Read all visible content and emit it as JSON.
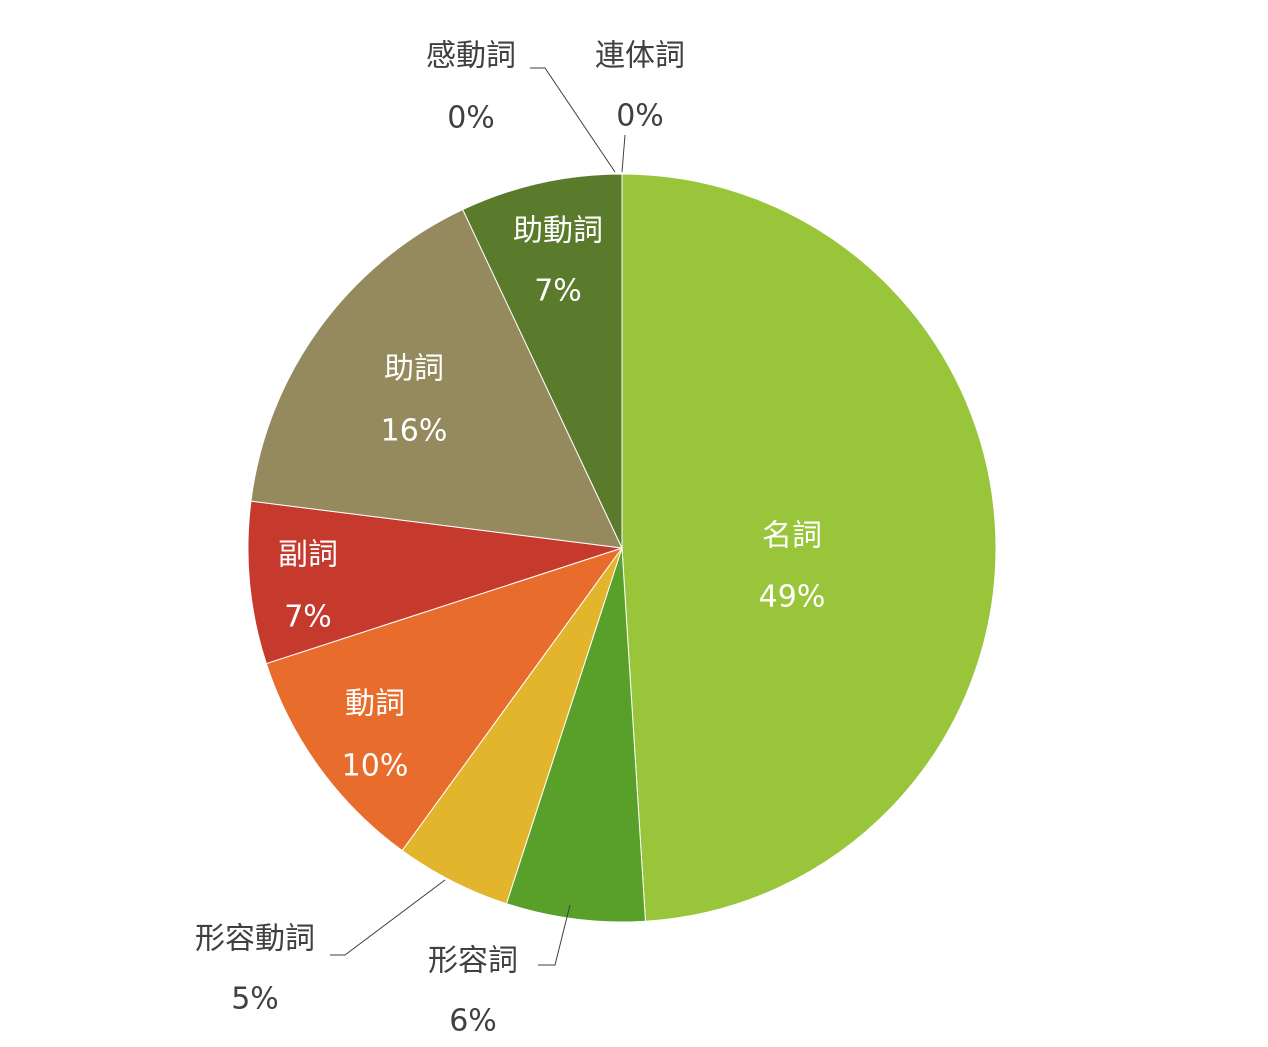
{
  "chart_data": {
    "type": "pie",
    "categories": [
      "名詞",
      "形容詞",
      "形容動詞",
      "動詞",
      "副詞",
      "助詞",
      "助動詞",
      "感動詞",
      "連体詞"
    ],
    "values": [
      49,
      6,
      5,
      10,
      7,
      16,
      7,
      0,
      0
    ],
    "value_labels": [
      "49%",
      "6%",
      "5%",
      "10%",
      "7%",
      "16%",
      "7%",
      "0%",
      "0%"
    ],
    "colors": [
      "#98c53a",
      "#58a02a",
      "#e2b52c",
      "#e86c2c",
      "#c63a2e",
      "#958a5e",
      "#5a7a2c",
      "#4a6a3a",
      "#b07a3a"
    ]
  }
}
